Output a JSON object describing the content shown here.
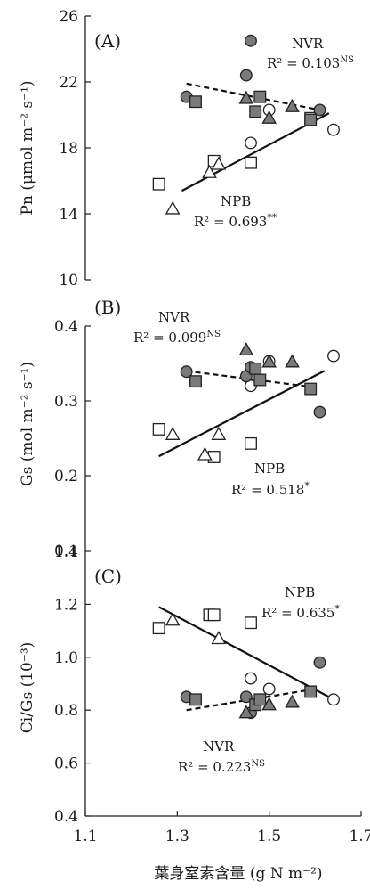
{
  "chart_data": [
    {
      "type": "scatter",
      "panel_label": "(A)",
      "ylabel": "Pn (μmol m⁻² s⁻¹)",
      "ylim": [
        10,
        26
      ],
      "yticks": [
        "10",
        "14",
        "18",
        "22",
        "26"
      ],
      "ytick_values": [
        10,
        14,
        18,
        22,
        26
      ],
      "xlim": [
        1.1,
        1.7
      ],
      "series": [
        {
          "shape": "square",
          "fill": "white",
          "points": [
            [
              1.26,
              15.8
            ],
            [
              1.38,
              17.2
            ],
            [
              1.46,
              17.1
            ],
            [
              1.59,
              19.8
            ]
          ]
        },
        {
          "shape": "triangle",
          "fill": "white",
          "points": [
            [
              1.29,
              14.3
            ],
            [
              1.37,
              16.5
            ],
            [
              1.39,
              17.0
            ]
          ]
        },
        {
          "shape": "circle",
          "fill": "white",
          "points": [
            [
              1.46,
              18.3
            ],
            [
              1.5,
              20.3
            ],
            [
              1.64,
              19.1
            ]
          ]
        },
        {
          "shape": "circle",
          "fill": "gray",
          "points": [
            [
              1.32,
              21.1
            ],
            [
              1.45,
              22.4
            ],
            [
              1.46,
              24.5
            ],
            [
              1.61,
              20.3
            ]
          ]
        },
        {
          "shape": "square",
          "fill": "gray",
          "points": [
            [
              1.34,
              20.8
            ],
            [
              1.47,
              20.2
            ],
            [
              1.48,
              21.1
            ],
            [
              1.59,
              19.7
            ]
          ]
        },
        {
          "shape": "triangle",
          "fill": "gray",
          "points": [
            [
              1.45,
              21.0
            ],
            [
              1.5,
              19.8
            ],
            [
              1.55,
              20.5
            ]
          ]
        }
      ],
      "fits": [
        {
          "group": "NPB",
          "style": "solid",
          "x": [
            1.31,
            1.63
          ],
          "y": [
            15.4,
            20.1
          ]
        },
        {
          "group": "NVR",
          "style": "dashed",
          "x": [
            1.32,
            1.61
          ],
          "y": [
            21.9,
            20.3
          ]
        }
      ],
      "annotations": [
        {
          "group": "NVR",
          "label": "NVR",
          "r2": "R² = 0.103",
          "sig": "NS"
        },
        {
          "group": "NPB",
          "label": "NPB",
          "r2": "R² = 0.693",
          "sig": "**"
        }
      ]
    },
    {
      "type": "scatter",
      "panel_label": "(B)",
      "ylabel": "Gs (mol m⁻² s⁻¹)",
      "ylim": [
        0.1,
        0.4
      ],
      "yticks": [
        "0.1",
        "0.2",
        "0.3",
        "0.4"
      ],
      "ytick_values": [
        0.1,
        0.2,
        0.3,
        0.4
      ],
      "xlim": [
        1.1,
        1.7
      ],
      "series": [
        {
          "shape": "square",
          "fill": "white",
          "points": [
            [
              1.26,
              0.262
            ],
            [
              1.38,
              0.225
            ],
            [
              1.46,
              0.243
            ]
          ]
        },
        {
          "shape": "triangle",
          "fill": "white",
          "points": [
            [
              1.29,
              0.255
            ],
            [
              1.36,
              0.228
            ],
            [
              1.39,
              0.255
            ]
          ]
        },
        {
          "shape": "circle",
          "fill": "white",
          "points": [
            [
              1.46,
              0.32
            ],
            [
              1.5,
              0.353
            ],
            [
              1.64,
              0.36
            ]
          ]
        },
        {
          "shape": "circle",
          "fill": "gray",
          "points": [
            [
              1.32,
              0.339
            ],
            [
              1.45,
              0.333
            ],
            [
              1.46,
              0.345
            ],
            [
              1.61,
              0.285
            ]
          ]
        },
        {
          "shape": "square",
          "fill": "gray",
          "points": [
            [
              1.34,
              0.326
            ],
            [
              1.47,
              0.343
            ],
            [
              1.48,
              0.328
            ],
            [
              1.59,
              0.316
            ]
          ]
        },
        {
          "shape": "triangle",
          "fill": "gray",
          "points": [
            [
              1.45,
              0.368
            ],
            [
              1.5,
              0.352
            ],
            [
              1.55,
              0.352
            ]
          ]
        }
      ],
      "fits": [
        {
          "group": "NPB",
          "style": "solid",
          "x": [
            1.26,
            1.62
          ],
          "y": [
            0.226,
            0.34
          ]
        },
        {
          "group": "NVR",
          "style": "dashed",
          "x": [
            1.32,
            1.6
          ],
          "y": [
            0.34,
            0.318
          ]
        }
      ],
      "annotations": [
        {
          "group": "NVR",
          "label": "NVR",
          "r2": "R² = 0.099",
          "sig": "NS"
        },
        {
          "group": "NPB",
          "label": "NPB",
          "r2": "R² = 0.518",
          "sig": "*"
        }
      ]
    },
    {
      "type": "scatter",
      "panel_label": "(C)",
      "ylabel": "Ci/Gs (10⁻³)",
      "ylim": [
        0.4,
        1.4
      ],
      "yticks": [
        "0.4",
        "0.6",
        "0.8",
        "1.0",
        "1.2",
        "1.4"
      ],
      "ytick_values": [
        0.4,
        0.6,
        0.8,
        1.0,
        1.2,
        1.4
      ],
      "xlim": [
        1.1,
        1.7
      ],
      "xticks": [
        "1.1",
        "1.3",
        "1.5",
        "1.7"
      ],
      "xtick_values": [
        1.1,
        1.3,
        1.5,
        1.7
      ],
      "xlabel": "葉身窒素含量 (g N m⁻²)",
      "series": [
        {
          "shape": "square",
          "fill": "white",
          "points": [
            [
              1.26,
              1.11
            ],
            [
              1.37,
              1.16
            ],
            [
              1.38,
              1.16
            ],
            [
              1.46,
              1.13
            ]
          ]
        },
        {
          "shape": "triangle",
          "fill": "white",
          "points": [
            [
              1.29,
              1.14
            ],
            [
              1.39,
              1.07
            ]
          ]
        },
        {
          "shape": "circle",
          "fill": "white",
          "points": [
            [
              1.46,
              0.92
            ],
            [
              1.5,
              0.88
            ],
            [
              1.64,
              0.84
            ]
          ]
        },
        {
          "shape": "circle",
          "fill": "gray",
          "points": [
            [
              1.32,
              0.85
            ],
            [
              1.45,
              0.85
            ],
            [
              1.46,
              0.79
            ],
            [
              1.61,
              0.98
            ]
          ]
        },
        {
          "shape": "square",
          "fill": "gray",
          "points": [
            [
              1.34,
              0.84
            ],
            [
              1.47,
              0.82
            ],
            [
              1.48,
              0.84
            ],
            [
              1.59,
              0.87
            ]
          ]
        },
        {
          "shape": "triangle",
          "fill": "gray",
          "points": [
            [
              1.45,
              0.79
            ],
            [
              1.5,
              0.82
            ],
            [
              1.55,
              0.83
            ]
          ]
        }
      ],
      "fits": [
        {
          "group": "NPB",
          "style": "solid",
          "x": [
            1.26,
            1.63
          ],
          "y": [
            1.19,
            0.85
          ]
        },
        {
          "group": "NVR",
          "style": "dashed",
          "x": [
            1.32,
            1.6
          ],
          "y": [
            0.8,
            0.88
          ]
        }
      ],
      "annotations": [
        {
          "group": "NPB",
          "label": "NPB",
          "r2": "R² = 0.635",
          "sig": "*"
        },
        {
          "group": "NVR",
          "label": "NVR",
          "r2": "R² = 0.223",
          "sig": "NS"
        }
      ]
    }
  ]
}
